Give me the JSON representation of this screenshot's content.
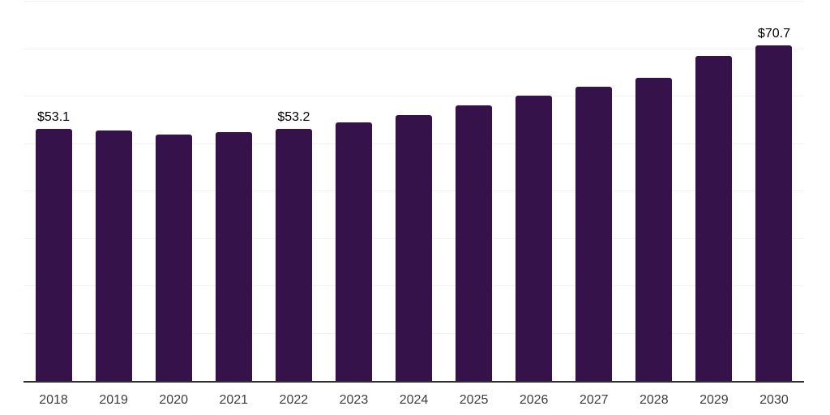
{
  "style": {
    "background": "#ffffff",
    "bar_color": "#351249",
    "axis_line_color": "#303030",
    "gridline_color": "#f2f1f3",
    "data_label_color": "#000000",
    "tick_label_color": "#3c3c3c"
  },
  "chart_data": {
    "type": "bar",
    "title": "",
    "xlabel": "",
    "ylabel": "",
    "categories": [
      "2018",
      "2019",
      "2020",
      "2021",
      "2022",
      "2023",
      "2024",
      "2025",
      "2026",
      "2027",
      "2028",
      "2029",
      "2030"
    ],
    "values": [
      53.1,
      52.8,
      51.9,
      52.5,
      53.2,
      54.5,
      56.0,
      58.1,
      60.1,
      62.1,
      63.9,
      68.5,
      70.7
    ],
    "data_labels": [
      "$53.1",
      null,
      null,
      null,
      "$53.2",
      null,
      null,
      null,
      null,
      null,
      null,
      null,
      "$70.7"
    ],
    "ylim": [
      0,
      80
    ],
    "gridline_step": 10,
    "y_tick_labels_visible": false,
    "grid": "horizontal",
    "legend": "none",
    "currency_prefix": "$"
  }
}
